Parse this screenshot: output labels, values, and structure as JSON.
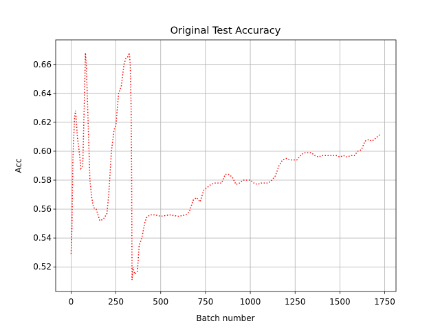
{
  "chart_data": {
    "type": "line",
    "title": "Original Test Accuracy",
    "x_label": "Batch number",
    "y_label": "Acc",
    "x": [
      0,
      5,
      10,
      20,
      25,
      35,
      45,
      55,
      65,
      75,
      80,
      85,
      95,
      105,
      115,
      125,
      140,
      160,
      180,
      200,
      210,
      225,
      240,
      250,
      265,
      280,
      295,
      305,
      315,
      325,
      330,
      335,
      338,
      340,
      345,
      355,
      370,
      380,
      395,
      410,
      420,
      440,
      470,
      500,
      550,
      600,
      640,
      660,
      680,
      700,
      720,
      740,
      760,
      780,
      800,
      820,
      840,
      860,
      880,
      900,
      920,
      940,
      960,
      980,
      1000,
      1020,
      1040,
      1060,
      1080,
      1100,
      1120,
      1140,
      1160,
      1180,
      1200,
      1220,
      1240,
      1260,
      1280,
      1300,
      1320,
      1340,
      1360,
      1380,
      1400,
      1440,
      1480,
      1500,
      1520,
      1540,
      1560,
      1580,
      1600,
      1620,
      1640,
      1660,
      1680,
      1700,
      1727
    ],
    "series": [
      {
        "color": "#ff0000",
        "values": [
          0.529,
          0.548,
          0.595,
          0.625,
          0.628,
          0.61,
          0.6,
          0.588,
          0.59,
          0.64,
          0.668,
          0.66,
          0.62,
          0.58,
          0.568,
          0.561,
          0.56,
          0.552,
          0.553,
          0.557,
          0.57,
          0.6,
          0.615,
          0.618,
          0.64,
          0.645,
          0.66,
          0.664,
          0.665,
          0.668,
          0.66,
          0.63,
          0.58,
          0.511,
          0.52,
          0.515,
          0.517,
          0.535,
          0.54,
          0.55,
          0.554,
          0.556,
          0.556,
          0.555,
          0.556,
          0.555,
          0.556,
          0.558,
          0.566,
          0.568,
          0.565,
          0.573,
          0.575,
          0.577,
          0.578,
          0.578,
          0.578,
          0.584,
          0.584,
          0.582,
          0.577,
          0.578,
          0.58,
          0.58,
          0.58,
          0.578,
          0.577,
          0.578,
          0.578,
          0.578,
          0.58,
          0.583,
          0.59,
          0.594,
          0.595,
          0.594,
          0.594,
          0.594,
          0.597,
          0.599,
          0.599,
          0.599,
          0.597,
          0.596,
          0.597,
          0.597,
          0.597,
          0.596,
          0.597,
          0.596,
          0.597,
          0.597,
          0.6,
          0.601,
          0.607,
          0.608,
          0.607,
          0.609,
          0.612
        ]
      }
    ],
    "xlim": [
      -86,
      1813
    ],
    "ylim": [
      0.503,
      0.677
    ],
    "xticks": [
      0,
      250,
      500,
      750,
      1000,
      1250,
      1500,
      1750
    ],
    "yticks": [
      0.52,
      0.54,
      0.56,
      0.58,
      {
        "value": 0.6,
        "label": "0.60"
      },
      0.62,
      0.64,
      0.66
    ],
    "grid": true
  }
}
